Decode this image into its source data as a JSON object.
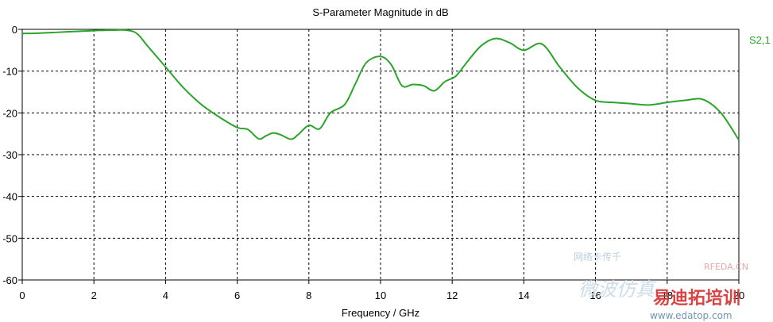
{
  "chart_data": {
    "type": "line",
    "title": "S-Parameter Magnitude in dB",
    "xlabel": "Frequency / GHz",
    "ylabel": "",
    "xlim": [
      0,
      20
    ],
    "ylim": [
      -60,
      0
    ],
    "xticks": [
      "0",
      "2",
      "4",
      "6",
      "8",
      "10",
      "12",
      "14",
      "16",
      "18",
      "20"
    ],
    "yticks": [
      "0",
      "-10",
      "-20",
      "-30",
      "-40",
      "-50",
      "-60"
    ],
    "grid": true,
    "legend": "right",
    "series": [
      {
        "name": "S2,1",
        "color": "#2aa52a",
        "x": [
          0,
          0.5,
          1,
          1.5,
          2,
          2.5,
          2.9,
          3.2,
          3.5,
          4,
          4.5,
          5,
          5.5,
          6,
          6.3,
          6.6,
          6.8,
          7,
          7.2,
          7.5,
          7.7,
          8,
          8.3,
          8.6,
          9,
          9.3,
          9.6,
          10,
          10.3,
          10.6,
          10.9,
          11.2,
          11.5,
          11.8,
          12.1,
          12.4,
          12.8,
          13.2,
          13.6,
          14,
          14.5,
          15,
          15.5,
          16,
          16.5,
          17,
          17.5,
          18,
          18.5,
          19,
          19.5,
          20
        ],
        "y": [
          -1,
          -0.9,
          -0.7,
          -0.5,
          -0.3,
          -0.2,
          -0.2,
          -1,
          -4,
          -9,
          -14,
          -18,
          -21,
          -23.5,
          -24,
          -26.2,
          -25.5,
          -24.8,
          -25.2,
          -26.3,
          -25.2,
          -23,
          -23.8,
          -20,
          -18,
          -13,
          -8,
          -6.5,
          -8.5,
          -13.5,
          -13.2,
          -13.5,
          -14.7,
          -12.5,
          -11.2,
          -8,
          -4,
          -2.2,
          -3.2,
          -5,
          -3.5,
          -9,
          -14,
          -17,
          -17.5,
          -17.8,
          -18.1,
          -17.5,
          -17,
          -16.8,
          -20,
          -26.5
        ]
      }
    ]
  },
  "watermark": {
    "line1": "RFEDA.CN",
    "line2": "www.edatop.com",
    "brand": "易迪拓培训",
    "faint_top": "网络卡传千",
    "faint_bottom": "微波仿真"
  }
}
